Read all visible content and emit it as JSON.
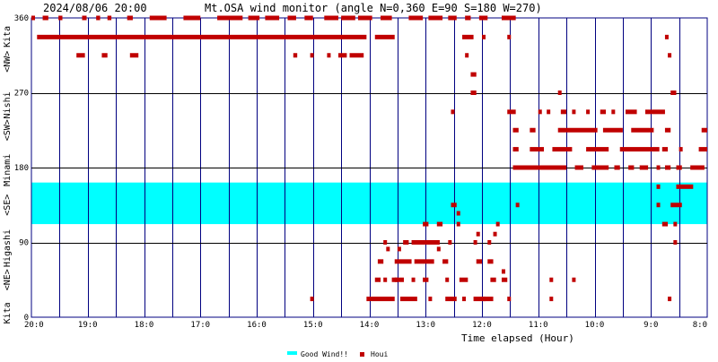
{
  "header": {
    "timestamp": "2024/08/06 20:00",
    "title": "Mt.OSA wind monitor (angle N=0,360 E=90 S=180 W=270)"
  },
  "side_labels": [
    {
      "text": "Kita",
      "deg": 337.5
    },
    {
      "text": "<NW>",
      "deg": 307.5
    },
    {
      "text": "Nishi",
      "deg": 255
    },
    {
      "text": "<SW>",
      "deg": 225
    },
    {
      "text": "Minami",
      "deg": 177
    },
    {
      "text": "<SE>",
      "deg": 135
    },
    {
      "text": "Higashi",
      "deg": 83
    },
    {
      "text": "<NE>",
      "deg": 45
    },
    {
      "text": "Kita",
      "deg": 5
    }
  ],
  "colors": {
    "grid": "#000080",
    "hline": "#000000",
    "good_band": "#00ffff",
    "houi": "#c00000"
  },
  "chart_data": {
    "type": "scatter",
    "title": "Mt.OSA wind monitor (angle N=0,360 E=90 S=180 W=270)",
    "xlabel": "Time elapsed (Hour)",
    "ylabel": "",
    "x_unit": "hours before 2024/08/06 20:00",
    "xlim": [
      0,
      12
    ],
    "ylim": [
      0,
      360
    ],
    "x_ticks": [
      {
        "label": "20:0",
        "h": 0
      },
      {
        "label": "19:0",
        "h": 1
      },
      {
        "label": "18:0",
        "h": 2
      },
      {
        "label": "17:0",
        "h": 3
      },
      {
        "label": "16:0",
        "h": 4
      },
      {
        "label": "15:0",
        "h": 5
      },
      {
        "label": "14:0",
        "h": 6
      },
      {
        "label": "13:0",
        "h": 7
      },
      {
        "label": "12:0",
        "h": 8
      },
      {
        "label": "11:0",
        "h": 9
      },
      {
        "label": "10:0",
        "h": 10
      },
      {
        "label": "9:0",
        "h": 11
      },
      {
        "label": "8:0",
        "h": 12
      }
    ],
    "y_ticks": [
      {
        "label": "360",
        "v": 360
      },
      {
        "label": "270",
        "v": 270
      },
      {
        "label": "180",
        "v": 180
      },
      {
        "label": "90",
        "v": 90
      },
      {
        "label": "0",
        "v": 0
      }
    ],
    "grid": true,
    "legend": "bottom-center",
    "good_wind": {
      "name": "Good Wind!!",
      "range": [
        112,
        162
      ]
    },
    "series": [
      {
        "name": "Houi",
        "segments": [
          [
            0.0,
            0.05,
            360
          ],
          [
            0.2,
            0.3,
            360
          ],
          [
            0.48,
            0.55,
            360
          ],
          [
            0.9,
            0.98,
            360
          ],
          [
            1.15,
            1.22,
            360
          ],
          [
            1.35,
            1.42,
            360
          ],
          [
            1.7,
            1.8,
            360
          ],
          [
            2.1,
            2.4,
            360
          ],
          [
            2.7,
            3.0,
            360
          ],
          [
            3.3,
            3.75,
            360
          ],
          [
            3.85,
            4.05,
            360
          ],
          [
            4.15,
            4.4,
            360
          ],
          [
            4.55,
            4.7,
            360
          ],
          [
            4.85,
            5.0,
            360
          ],
          [
            5.2,
            5.45,
            360
          ],
          [
            5.5,
            5.75,
            360
          ],
          [
            5.8,
            6.05,
            360
          ],
          [
            6.2,
            6.4,
            360
          ],
          [
            6.7,
            6.95,
            360
          ],
          [
            7.05,
            7.3,
            360
          ],
          [
            7.4,
            7.55,
            360
          ],
          [
            7.7,
            7.8,
            360
          ],
          [
            7.95,
            8.1,
            360
          ],
          [
            8.35,
            8.6,
            360
          ],
          [
            0.1,
            5.95,
            337
          ],
          [
            6.1,
            6.45,
            337
          ],
          [
            7.65,
            7.85,
            337
          ],
          [
            8.0,
            8.05,
            337
          ],
          [
            8.45,
            8.5,
            337
          ],
          [
            11.25,
            11.3,
            337
          ],
          [
            0.8,
            0.95,
            315
          ],
          [
            1.25,
            1.35,
            315
          ],
          [
            1.75,
            1.9,
            315
          ],
          [
            4.65,
            4.72,
            315
          ],
          [
            4.95,
            5.0,
            315
          ],
          [
            5.25,
            5.3,
            315
          ],
          [
            5.45,
            5.6,
            315
          ],
          [
            5.65,
            5.9,
            315
          ],
          [
            7.7,
            7.75,
            315
          ],
          [
            11.3,
            11.35,
            315
          ],
          [
            7.8,
            7.9,
            292
          ],
          [
            7.8,
            7.9,
            270
          ],
          [
            11.35,
            11.45,
            270
          ],
          [
            9.35,
            9.4,
            270
          ],
          [
            8.45,
            8.6,
            247
          ],
          [
            9.0,
            9.05,
            247
          ],
          [
            9.15,
            9.2,
            247
          ],
          [
            9.4,
            9.5,
            247
          ],
          [
            9.6,
            9.65,
            247
          ],
          [
            9.85,
            9.9,
            247
          ],
          [
            10.1,
            10.2,
            247
          ],
          [
            10.3,
            10.35,
            247
          ],
          [
            10.55,
            10.75,
            247
          ],
          [
            10.9,
            11.25,
            247
          ],
          [
            7.45,
            7.5,
            247
          ],
          [
            8.55,
            8.65,
            225
          ],
          [
            8.85,
            8.95,
            225
          ],
          [
            9.35,
            10.05,
            225
          ],
          [
            10.15,
            10.5,
            225
          ],
          [
            10.65,
            11.05,
            225
          ],
          [
            11.25,
            11.35,
            225
          ],
          [
            11.9,
            12.0,
            225
          ],
          [
            8.55,
            8.65,
            202
          ],
          [
            8.85,
            9.1,
            202
          ],
          [
            9.25,
            9.6,
            202
          ],
          [
            9.85,
            10.25,
            202
          ],
          [
            10.45,
            11.15,
            202
          ],
          [
            11.2,
            11.3,
            202
          ],
          [
            11.5,
            11.55,
            202
          ],
          [
            11.85,
            12.0,
            202
          ],
          [
            8.55,
            9.5,
            180
          ],
          [
            9.65,
            9.8,
            180
          ],
          [
            9.95,
            10.25,
            180
          ],
          [
            10.35,
            10.45,
            180
          ],
          [
            10.6,
            10.7,
            180
          ],
          [
            10.8,
            10.95,
            180
          ],
          [
            11.1,
            11.15,
            180
          ],
          [
            11.25,
            11.35,
            180
          ],
          [
            11.45,
            11.55,
            180
          ],
          [
            11.7,
            11.95,
            180
          ],
          [
            11.45,
            11.75,
            157
          ],
          [
            11.1,
            11.15,
            157
          ],
          [
            7.45,
            7.55,
            135
          ],
          [
            8.6,
            8.65,
            135
          ],
          [
            11.1,
            11.15,
            135
          ],
          [
            11.35,
            11.55,
            135
          ],
          [
            11.2,
            11.3,
            112
          ],
          [
            6.95,
            7.05,
            112
          ],
          [
            7.2,
            7.3,
            112
          ],
          [
            7.55,
            7.6,
            112
          ],
          [
            8.25,
            8.3,
            112
          ],
          [
            11.4,
            11.45,
            112
          ],
          [
            7.55,
            7.6,
            125
          ],
          [
            6.25,
            6.3,
            90
          ],
          [
            6.6,
            6.7,
            90
          ],
          [
            6.75,
            7.25,
            90
          ],
          [
            7.4,
            7.45,
            90
          ],
          [
            7.85,
            7.9,
            90
          ],
          [
            8.1,
            8.15,
            90
          ],
          [
            11.4,
            11.45,
            90
          ],
          [
            7.9,
            7.95,
            100
          ],
          [
            8.2,
            8.25,
            100
          ],
          [
            6.15,
            6.25,
            67
          ],
          [
            6.45,
            6.75,
            67
          ],
          [
            6.8,
            7.15,
            67
          ],
          [
            7.3,
            7.4,
            67
          ],
          [
            7.9,
            8.0,
            67
          ],
          [
            8.1,
            8.2,
            67
          ],
          [
            6.3,
            6.35,
            82
          ],
          [
            6.5,
            6.55,
            82
          ],
          [
            7.2,
            7.25,
            82
          ],
          [
            6.95,
            7.05,
            45
          ],
          [
            7.6,
            7.75,
            45
          ],
          [
            8.15,
            8.25,
            45
          ],
          [
            8.35,
            8.45,
            45
          ],
          [
            9.2,
            9.25,
            45
          ],
          [
            6.1,
            6.2,
            45
          ],
          [
            6.25,
            6.3,
            45
          ],
          [
            7.35,
            7.4,
            45
          ],
          [
            6.45,
            6.55,
            45
          ],
          [
            6.55,
            6.6,
            45
          ],
          [
            6.75,
            6.8,
            45
          ],
          [
            8.35,
            8.4,
            55
          ],
          [
            9.6,
            9.65,
            45
          ],
          [
            4.95,
            5.0,
            22
          ],
          [
            5.95,
            6.45,
            22
          ],
          [
            6.55,
            6.85,
            22
          ],
          [
            7.05,
            7.1,
            22
          ],
          [
            7.35,
            7.55,
            22
          ],
          [
            7.65,
            7.7,
            22
          ],
          [
            7.85,
            8.2,
            22
          ],
          [
            8.45,
            8.5,
            22
          ],
          [
            9.2,
            9.25,
            22
          ],
          [
            11.3,
            11.35,
            22
          ],
          [
            6.4,
            6.5,
            45
          ],
          [
            8.0,
            8.05,
            22
          ]
        ]
      }
    ]
  }
}
